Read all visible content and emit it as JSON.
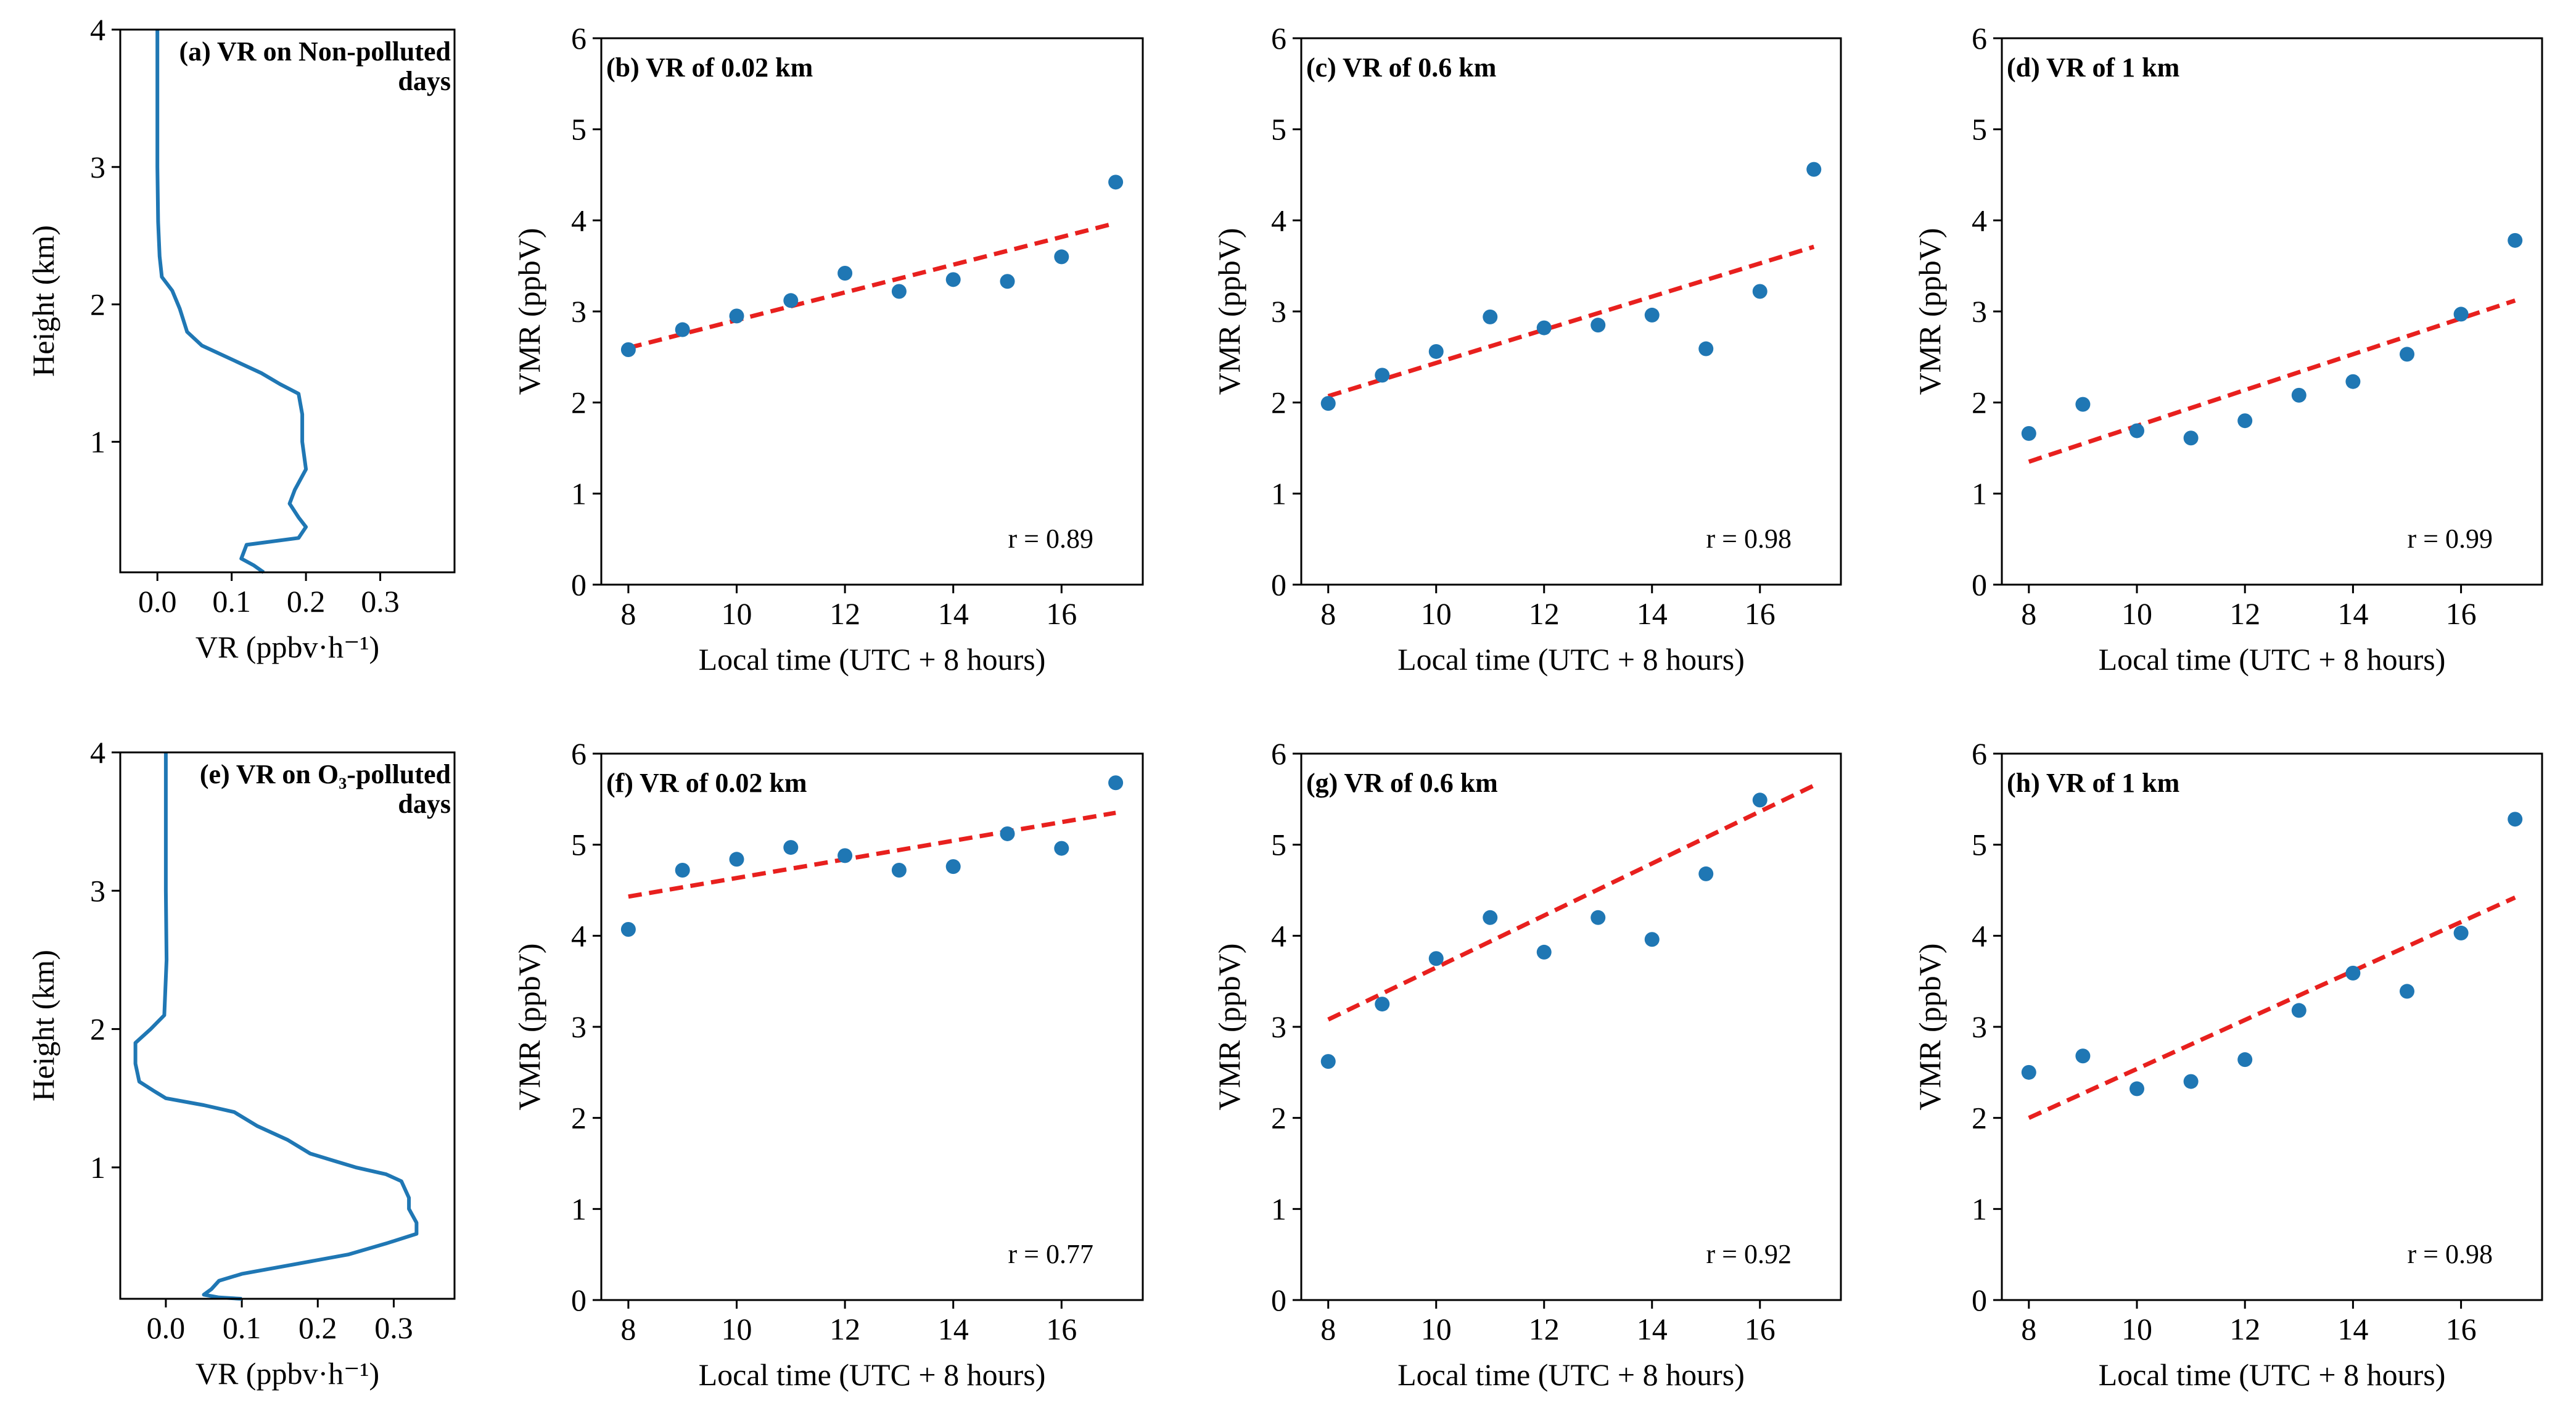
{
  "colors": {
    "profile": "#1f77b4",
    "points": "#1f77b4",
    "fit": "#e8201e",
    "axis": "#000000"
  },
  "chart_data": [
    {
      "id": "a",
      "type": "line",
      "title": "(a) VR on Non-polluted days",
      "title_lines": [
        "(a) VR on Non-polluted",
        "days"
      ],
      "xlabel": "VR (ppbv·h⁻¹)",
      "ylabel": "Height (km)",
      "xlim": [
        -0.05,
        0.4
      ],
      "ylim": [
        0.05,
        4.0
      ],
      "xticks": [
        0.0,
        0.1,
        0.2,
        0.3
      ],
      "xtick_labels": [
        "0.0",
        "0.1",
        "0.2",
        "0.3"
      ],
      "yticks": [
        1,
        2,
        3,
        4
      ],
      "ytick_labels": [
        "1",
        "2",
        "3",
        "4"
      ],
      "series": [
        {
          "name": "VR profile",
          "points": [
            [
              0.0,
              4.0
            ],
            [
              0.0,
              3.5
            ],
            [
              0.0,
              3.0
            ],
            [
              0.001,
              2.6
            ],
            [
              0.003,
              2.35
            ],
            [
              0.006,
              2.2
            ],
            [
              0.02,
              2.1
            ],
            [
              0.03,
              1.97
            ],
            [
              0.04,
              1.8
            ],
            [
              0.06,
              1.7
            ],
            [
              0.1,
              1.6
            ],
            [
              0.14,
              1.5
            ],
            [
              0.165,
              1.42
            ],
            [
              0.19,
              1.35
            ],
            [
              0.195,
              1.2
            ],
            [
              0.195,
              1.0
            ],
            [
              0.2,
              0.8
            ],
            [
              0.185,
              0.65
            ],
            [
              0.178,
              0.55
            ],
            [
              0.19,
              0.45
            ],
            [
              0.2,
              0.38
            ],
            [
              0.19,
              0.3
            ],
            [
              0.12,
              0.25
            ],
            [
              0.113,
              0.15
            ],
            [
              0.13,
              0.1
            ],
            [
              0.143,
              0.05
            ]
          ]
        }
      ]
    },
    {
      "id": "b",
      "type": "scatter",
      "title": "(b) VR of 0.02 km",
      "title_lines": [
        "(b) VR of 0.02 km"
      ],
      "xlabel": "Local time (UTC + 8 hours)",
      "ylabel": "VMR (ppbV)",
      "xlim": [
        7.5,
        17.5
      ],
      "ylim": [
        0,
        6
      ],
      "xticks": [
        8,
        10,
        12,
        14,
        16
      ],
      "xtick_labels": [
        "8",
        "10",
        "12",
        "14",
        "16"
      ],
      "yticks": [
        0,
        1,
        2,
        3,
        4,
        5,
        6
      ],
      "ytick_labels": [
        "0",
        "1",
        "2",
        "3",
        "4",
        "5",
        "6"
      ],
      "x": [
        8,
        9,
        10,
        11,
        12,
        13,
        14,
        15,
        16,
        17
      ],
      "values": [
        2.58,
        2.8,
        2.95,
        3.12,
        3.42,
        3.22,
        3.35,
        3.33,
        3.6,
        4.42
      ],
      "fit": [
        [
          8,
          2.6
        ],
        [
          17,
          3.97
        ]
      ],
      "r_label": "r = 0.89"
    },
    {
      "id": "c",
      "type": "scatter",
      "title": "(c) VR of 0.6 km",
      "title_lines": [
        "(c) VR of 0.6 km"
      ],
      "xlabel": "Local time (UTC + 8 hours)",
      "ylabel": "VMR (ppbV)",
      "xlim": [
        7.5,
        17.5
      ],
      "ylim": [
        0,
        6
      ],
      "xticks": [
        8,
        10,
        12,
        14,
        16
      ],
      "xtick_labels": [
        "8",
        "10",
        "12",
        "14",
        "16"
      ],
      "yticks": [
        0,
        1,
        2,
        3,
        4,
        5,
        6
      ],
      "ytick_labels": [
        "0",
        "1",
        "2",
        "3",
        "4",
        "5",
        "6"
      ],
      "x": [
        8,
        9,
        10,
        11,
        12,
        13,
        14,
        15,
        16,
        17
      ],
      "values": [
        1.99,
        2.3,
        2.56,
        2.94,
        2.82,
        2.85,
        2.96,
        2.59,
        3.22,
        4.56
      ],
      "fit": [
        [
          8,
          2.07
        ],
        [
          17,
          3.71
        ]
      ],
      "r_label": "r = 0.98"
    },
    {
      "id": "d",
      "type": "scatter",
      "title": "(d) VR of 1 km",
      "title_lines": [
        "(d) VR of 1 km"
      ],
      "xlabel": "Local time (UTC + 8 hours)",
      "ylabel": "VMR (ppbV)",
      "xlim": [
        7.5,
        17.5
      ],
      "ylim": [
        0,
        6
      ],
      "xticks": [
        8,
        10,
        12,
        14,
        16
      ],
      "xtick_labels": [
        "8",
        "10",
        "12",
        "14",
        "16"
      ],
      "yticks": [
        0,
        1,
        2,
        3,
        4,
        5,
        6
      ],
      "ytick_labels": [
        "0",
        "1",
        "2",
        "3",
        "4",
        "5",
        "6"
      ],
      "x": [
        8,
        9,
        10,
        11,
        12,
        13,
        14,
        15,
        16,
        17
      ],
      "values": [
        1.66,
        1.98,
        1.69,
        1.61,
        1.8,
        2.08,
        2.23,
        2.53,
        2.97,
        3.78
      ],
      "fit": [
        [
          8,
          1.35
        ],
        [
          17,
          3.12
        ]
      ],
      "r_label": "r = 0.99"
    },
    {
      "id": "e",
      "type": "line",
      "title": "(e) VR on O3-polluted days",
      "title_lines": [
        "(e)  VR on O₃-polluted",
        "days"
      ],
      "xlabel": "VR (ppbv·h⁻¹)",
      "ylabel": "Height (km)",
      "xlim": [
        -0.06,
        0.38
      ],
      "ylim": [
        0.05,
        4.0
      ],
      "xticks": [
        0.0,
        0.1,
        0.2,
        0.3
      ],
      "xtick_labels": [
        "0.0",
        "0.1",
        "0.2",
        "0.3"
      ],
      "yticks": [
        1,
        2,
        3,
        4
      ],
      "ytick_labels": [
        "1",
        "2",
        "3",
        "4"
      ],
      "series": [
        {
          "name": "VR profile",
          "points": [
            [
              0.0,
              4.0
            ],
            [
              0.0,
              3.5
            ],
            [
              0.0,
              3.0
            ],
            [
              0.001,
              2.5
            ],
            [
              -0.002,
              2.1
            ],
            [
              -0.02,
              2.0
            ],
            [
              -0.04,
              1.9
            ],
            [
              -0.04,
              1.75
            ],
            [
              -0.035,
              1.62
            ],
            [
              -0.015,
              1.55
            ],
            [
              0.0,
              1.5
            ],
            [
              0.05,
              1.45
            ],
            [
              0.09,
              1.4
            ],
            [
              0.12,
              1.3
            ],
            [
              0.16,
              1.2
            ],
            [
              0.19,
              1.1
            ],
            [
              0.22,
              1.05
            ],
            [
              0.25,
              1.0
            ],
            [
              0.29,
              0.95
            ],
            [
              0.31,
              0.9
            ],
            [
              0.32,
              0.78
            ],
            [
              0.32,
              0.7
            ],
            [
              0.33,
              0.6
            ],
            [
              0.33,
              0.52
            ],
            [
              0.29,
              0.45
            ],
            [
              0.24,
              0.37
            ],
            [
              0.17,
              0.3
            ],
            [
              0.1,
              0.23
            ],
            [
              0.07,
              0.18
            ],
            [
              0.06,
              0.12
            ],
            [
              0.05,
              0.08
            ],
            [
              0.07,
              0.06
            ],
            [
              0.1,
              0.05
            ]
          ]
        }
      ]
    },
    {
      "id": "f",
      "type": "scatter",
      "title": "(f) VR of 0.02 km",
      "title_lines": [
        "(f) VR of 0.02 km"
      ],
      "xlabel": "Local time (UTC + 8 hours)",
      "ylabel": "VMR (ppbV)",
      "xlim": [
        7.5,
        17.5
      ],
      "ylim": [
        0,
        6
      ],
      "xticks": [
        8,
        10,
        12,
        14,
        16
      ],
      "xtick_labels": [
        "8",
        "10",
        "12",
        "14",
        "16"
      ],
      "yticks": [
        0,
        1,
        2,
        3,
        4,
        5,
        6
      ],
      "ytick_labels": [
        "0",
        "1",
        "2",
        "3",
        "4",
        "5",
        "6"
      ],
      "x": [
        8,
        9,
        10,
        11,
        12,
        13,
        14,
        15,
        16,
        17
      ],
      "values": [
        4.07,
        4.72,
        4.84,
        4.97,
        4.88,
        4.72,
        4.76,
        5.12,
        4.96,
        5.68
      ],
      "fit": [
        [
          8,
          4.43
        ],
        [
          17,
          5.35
        ]
      ],
      "r_label": "r = 0.77"
    },
    {
      "id": "g",
      "type": "scatter",
      "title": "(g) VR of 0.6 km",
      "title_lines": [
        "(g) VR of 0.6 km"
      ],
      "xlabel": "Local time (UTC + 8 hours)",
      "ylabel": "VMR (ppbV)",
      "xlim": [
        7.5,
        17.5
      ],
      "ylim": [
        0,
        6
      ],
      "xticks": [
        8,
        10,
        12,
        14,
        16
      ],
      "xtick_labels": [
        "8",
        "10",
        "12",
        "14",
        "16"
      ],
      "yticks": [
        0,
        1,
        2,
        3,
        4,
        5,
        6
      ],
      "ytick_labels": [
        "0",
        "1",
        "2",
        "3",
        "4",
        "5",
        "6"
      ],
      "x": [
        8,
        9,
        10,
        11,
        12,
        13,
        14,
        15,
        16
      ],
      "values": [
        2.62,
        3.25,
        3.75,
        4.2,
        3.82,
        4.2,
        3.96,
        4.68,
        5.49
      ],
      "fit": [
        [
          8,
          3.08
        ],
        [
          17,
          5.65
        ]
      ],
      "r_label": "r = 0.92"
    },
    {
      "id": "h",
      "type": "scatter",
      "title": "(h) VR of 1 km",
      "title_lines": [
        "(h) VR of 1 km"
      ],
      "xlabel": "Local time (UTC + 8 hours)",
      "ylabel": "VMR (ppbV)",
      "xlim": [
        7.5,
        17.5
      ],
      "ylim": [
        0,
        6
      ],
      "xticks": [
        8,
        10,
        12,
        14,
        16
      ],
      "xtick_labels": [
        "8",
        "10",
        "12",
        "14",
        "16"
      ],
      "yticks": [
        0,
        1,
        2,
        3,
        4,
        5,
        6
      ],
      "ytick_labels": [
        "0",
        "1",
        "2",
        "3",
        "4",
        "5",
        "6"
      ],
      "x": [
        8,
        9,
        10,
        11,
        12,
        13,
        14,
        15,
        16,
        17
      ],
      "values": [
        2.5,
        2.68,
        2.32,
        2.4,
        2.64,
        3.18,
        3.59,
        3.39,
        4.03,
        5.28
      ],
      "fit": [
        [
          8,
          2.0
        ],
        [
          17,
          4.42
        ]
      ],
      "r_label": "r = 0.98"
    }
  ]
}
